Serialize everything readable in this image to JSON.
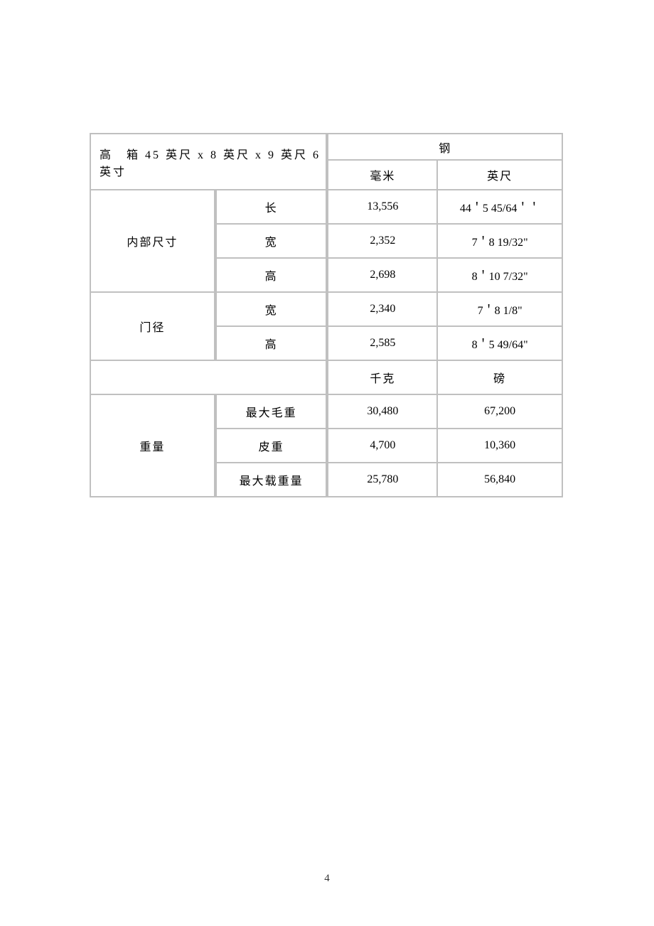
{
  "page_number": "4",
  "table": {
    "border_color": "#c0c0c0",
    "background_color": "#ffffff",
    "text_color": "#000000",
    "font_size": 16,
    "title": "高　箱 45 英尺 x 8 英尺 x 9 英尺 6 英寸",
    "material_header": "钢",
    "unit_dim_metric": "毫米",
    "unit_dim_imperial": "英尺",
    "unit_wt_metric": "千克",
    "unit_wt_imperial": "磅",
    "sections": {
      "internal": {
        "label": "内部尺寸",
        "rows": [
          {
            "label": "长",
            "metric": "13,556",
            "imperial": "44＇5 45/64＇＇"
          },
          {
            "label": "宽",
            "metric": "2,352",
            "imperial": "7＇8 19/32\""
          },
          {
            "label": "高",
            "metric": "2,698",
            "imperial": "8＇10 7/32\""
          }
        ]
      },
      "door": {
        "label": "门径",
        "rows": [
          {
            "label": "宽",
            "metric": "2,340",
            "imperial": "7＇8 1/8\""
          },
          {
            "label": "高",
            "metric": "2,585",
            "imperial": "8＇5 49/64\""
          }
        ]
      },
      "weight": {
        "label": "重量",
        "rows": [
          {
            "label": "最大毛重",
            "metric": "30,480",
            "imperial": "67,200"
          },
          {
            "label": "皮重",
            "metric": "4,700",
            "imperial": "10,360"
          },
          {
            "label": "最大载重量",
            "metric": "25,780",
            "imperial": "56,840"
          }
        ]
      }
    }
  }
}
